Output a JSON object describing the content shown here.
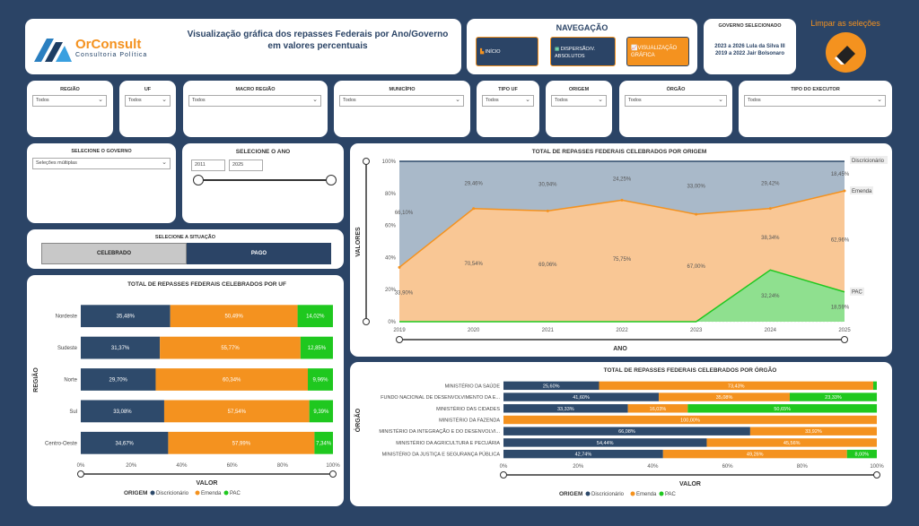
{
  "header": {
    "logo_name": "OrConsult",
    "logo_sub": "Consultoria Política",
    "title_l1": "Visualização gráfica dos repasses Federais por Ano/Governo",
    "title_l2": "em valores percentuais"
  },
  "nav": {
    "title": "NAVEGAÇÃO",
    "inicio": "INÍCIO",
    "dispersao_l1": "DISPERSÃO/V.",
    "dispersao_l2": "ABSOLUTOS",
    "visual_l1": "VISUALIZAÇÃO",
    "visual_l2": "GRÁFICA"
  },
  "governo": {
    "label": "GOVERNO SELECIONADO",
    "line1": "2023 a 2026 Lula da Silva III",
    "line2": "2019 a 2022 Jair Bolsonaro"
  },
  "clear": {
    "label": "Limpar as seleções"
  },
  "filters": {
    "regiao": {
      "label": "REGIÃO",
      "value": "Todos"
    },
    "uf": {
      "label": "UF",
      "value": "Todos"
    },
    "macro": {
      "label": "MACRO REGIÃO",
      "value": "Todos"
    },
    "municipio": {
      "label": "MUNICÍPIO",
      "value": "Todos"
    },
    "tipo_uf": {
      "label": "TIPO UF",
      "value": "Todos"
    },
    "origem": {
      "label": "ORIGEM",
      "value": "Todos"
    },
    "orgao": {
      "label": "ÓRGÃO",
      "value": "Todos"
    },
    "tipo_exec": {
      "label": "TIPO DO EXECUTOR",
      "value": "Todos"
    }
  },
  "sel_governo": {
    "label": "SELECIONE O GOVERNO",
    "value": "Seleções múltiplas"
  },
  "sel_ano": {
    "label": "SELECIONE O ANO",
    "from": "2011",
    "to": "2025"
  },
  "situacao": {
    "label": "SELECIONE A SITUAÇÃO",
    "opt1": "CELEBRADO",
    "opt2": "PAGO"
  },
  "colors": {
    "disc": "#2e4a6b",
    "emenda": "#f4921f",
    "pac": "#1fc81f"
  },
  "legend": {
    "title": "ORIGEM",
    "disc": "Discricionário",
    "emenda": "Emenda",
    "pac": "PAC"
  },
  "chart_data": [
    {
      "type": "area",
      "title": "TOTAL DE REPASSES FEDERAIS CELEBRADOS POR ORIGEM",
      "xlabel": "ANO",
      "ylabel": "VALORES",
      "x": [
        "2019",
        "2020",
        "2021",
        "2022",
        "2023",
        "2024",
        "2025"
      ],
      "yticks": [
        "0%",
        "20%",
        "40%",
        "60%",
        "80%",
        "100%"
      ],
      "ylim": [
        0,
        100
      ],
      "series": [
        {
          "name": "Discricionário",
          "values": [
            66.1,
            29.46,
            30.94,
            24.25,
            33.0,
            29.42,
            18.45
          ],
          "labels": [
            "66,10%",
            "29,46%",
            "30,94%",
            "24,25%",
            "33,00%",
            "29,42%",
            "18,45%"
          ]
        },
        {
          "name": "Emenda",
          "values": [
            33.9,
            70.54,
            69.06,
            75.75,
            67.0,
            38.34,
            62.96
          ],
          "labels": [
            "33,90%",
            "70,54%",
            "69,06%",
            "75,75%",
            "67,00%",
            "38,34%",
            "62,96%"
          ]
        },
        {
          "name": "PAC",
          "values": [
            0,
            0,
            0,
            0,
            0,
            32.24,
            18.59
          ],
          "labels": [
            "",
            "",
            "",
            "",
            "",
            "32,24%",
            "18,59%"
          ]
        }
      ]
    },
    {
      "type": "bar",
      "title": "TOTAL DE REPASSES FEDERAIS CELEBRADOS POR UF",
      "xlabel": "VALOR",
      "ylabel": "REGIÃO",
      "xticks": [
        "0%",
        "20%",
        "40%",
        "60%",
        "80%",
        "100%"
      ],
      "categories": [
        "Nordeste",
        "Sudeste",
        "Norte",
        "Sul",
        "Centro-Oeste"
      ],
      "series": [
        {
          "name": "Discricionário",
          "values": [
            35.48,
            31.37,
            29.7,
            33.08,
            34.67
          ],
          "labels": [
            "35,48%",
            "31,37%",
            "29,70%",
            "33,08%",
            "34,67%"
          ]
        },
        {
          "name": "Emenda",
          "values": [
            50.49,
            55.77,
            60.34,
            57.54,
            57.99
          ],
          "labels": [
            "50,49%",
            "55,77%",
            "60,34%",
            "57,54%",
            "57,99%"
          ]
        },
        {
          "name": "PAC",
          "values": [
            14.02,
            12.85,
            9.96,
            9.39,
            7.34
          ],
          "labels": [
            "14,02%",
            "12,85%",
            "9,96%",
            "9,39%",
            "7,34%"
          ]
        }
      ]
    },
    {
      "type": "bar",
      "title": "TOTAL DE REPASSES FEDERAIS CELEBRADOS POR ÓRGÃO",
      "xlabel": "VALOR",
      "ylabel": "ÓRGÃO",
      "xticks": [
        "0%",
        "20%",
        "40%",
        "60%",
        "80%",
        "100%"
      ],
      "categories": [
        "MINISTÉRIO DA SAÚDE",
        "FUNDO NACIONAL DE DESENVOLVIMENTO DA E...",
        "MINISTÉRIO DAS CIDADES",
        "MINISTÉRIO DA FAZENDA",
        "MINISTÉRIO DA INTEGRAÇÃO E DO DESENVOLVI...",
        "MINISTÉRIO DA AGRICULTURA E PECUÁRIA",
        "MINISTÉRIO DA JUSTIÇA E SEGURANÇA PÚBLICA"
      ],
      "series": [
        {
          "name": "Discricionário",
          "values": [
            25.6,
            41.6,
            33.33,
            0,
            66.08,
            54.44,
            42.74
          ],
          "labels": [
            "25,60%",
            "41,60%",
            "33,33%",
            "",
            "66,08%",
            "54,44%",
            "42,74%"
          ]
        },
        {
          "name": "Emenda",
          "values": [
            73.43,
            35.08,
            16.03,
            100.0,
            33.92,
            45.56,
            49.26
          ],
          "labels": [
            "73,43%",
            "35,08%",
            "16,03%",
            "100,00%",
            "33,92%",
            "45,56%",
            "49,26%"
          ]
        },
        {
          "name": "PAC",
          "values": [
            0.97,
            23.33,
            50.65,
            0,
            0,
            0,
            8.0
          ],
          "labels": [
            "",
            "23,33%",
            "50,65%",
            "",
            "",
            "",
            "8,00%"
          ]
        }
      ]
    }
  ]
}
